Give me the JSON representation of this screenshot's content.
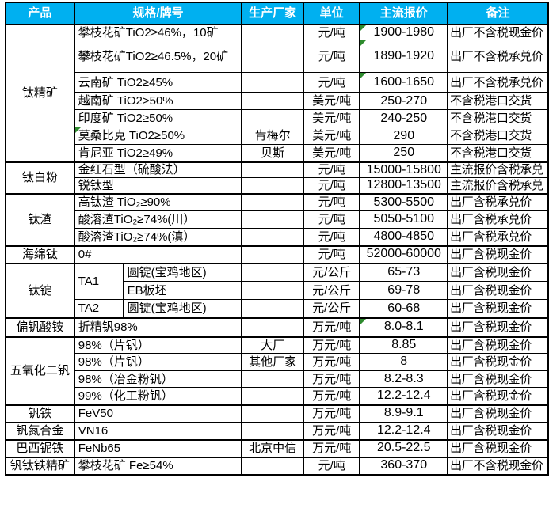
{
  "colors": {
    "header_bg": "#00B0F0",
    "header_text": "#FFFFFF",
    "border": "#000000",
    "error_flag_green": "#2E8B2E"
  },
  "table": {
    "columns": [
      "产品",
      "规格/牌号",
      "生产厂家",
      "单位",
      "主流报价",
      "备注"
    ],
    "rows": [
      {
        "cells": [
          {
            "type": "product",
            "text": "钛精矿",
            "rowspan": 7
          },
          {
            "type": "spec",
            "text": "攀枝花矿TiO2≥46%，10矿",
            "colspan": 2
          },
          {
            "type": "mfr",
            "text": ""
          },
          {
            "type": "unit",
            "text": "元/吨"
          },
          {
            "type": "price",
            "text": "1900-1980",
            "flag": true
          },
          {
            "type": "note",
            "text": "出厂不含税现金价"
          }
        ]
      },
      {
        "cells": [
          {
            "type": "spec",
            "text": "攀枝花矿TiO2≥46.5%，20矿",
            "colspan": 2
          },
          {
            "type": "mfr",
            "text": ""
          },
          {
            "type": "unit",
            "text": "元/吨"
          },
          {
            "type": "price",
            "text": "1890-1920",
            "flag": true
          },
          {
            "type": "note",
            "text": "出厂不含税承兑价"
          }
        ]
      },
      {
        "cells": [
          {
            "type": "spec",
            "text": "云南矿 TiO2≥45%",
            "colspan": 2
          },
          {
            "type": "mfr",
            "text": ""
          },
          {
            "type": "unit",
            "text": "元/吨"
          },
          {
            "type": "price",
            "text": "1600-1650",
            "flag": true
          },
          {
            "type": "note",
            "text": "出厂不含税承兑价"
          }
        ]
      },
      {
        "cells": [
          {
            "type": "spec",
            "text": "越南矿 TiO2>50%",
            "colspan": 2
          },
          {
            "type": "mfr",
            "text": ""
          },
          {
            "type": "unit",
            "text": "美元/吨"
          },
          {
            "type": "price",
            "text": "250-270"
          },
          {
            "type": "note",
            "text": "不含税港口交货"
          }
        ]
      },
      {
        "cells": [
          {
            "type": "spec",
            "text": "印度矿 TiO2≥50%",
            "colspan": 2
          },
          {
            "type": "mfr",
            "text": ""
          },
          {
            "type": "unit",
            "text": "美元/吨"
          },
          {
            "type": "price",
            "text": "240-250"
          },
          {
            "type": "note",
            "text": "不含税港口交货"
          }
        ]
      },
      {
        "cells": [
          {
            "type": "spec",
            "text": "莫桑比克 TiO2≥50%",
            "colspan": 2,
            "flag": true
          },
          {
            "type": "mfr",
            "text": "肯梅尔"
          },
          {
            "type": "unit",
            "text": "美元/吨"
          },
          {
            "type": "price",
            "text": "290"
          },
          {
            "type": "note",
            "text": "不含税港口交货"
          }
        ]
      },
      {
        "cells": [
          {
            "type": "spec",
            "text": "肯尼亚 TiO2≥49%",
            "colspan": 2
          },
          {
            "type": "mfr",
            "text": "贝斯"
          },
          {
            "type": "unit",
            "text": "美元/吨"
          },
          {
            "type": "price",
            "text": "250"
          },
          {
            "type": "note",
            "text": "不含税港口交货"
          }
        ]
      },
      {
        "cells": [
          {
            "type": "product",
            "text": "钛白粉",
            "rowspan": 2
          },
          {
            "type": "spec",
            "text": "金红石型（硫酸法）",
            "colspan": 2
          },
          {
            "type": "mfr",
            "text": ""
          },
          {
            "type": "unit",
            "text": "元/吨"
          },
          {
            "type": "price",
            "text": "15000-15800"
          },
          {
            "type": "note",
            "text": "主流报价含税承兑"
          }
        ]
      },
      {
        "cells": [
          {
            "type": "spec",
            "text": "锐钛型",
            "colspan": 2
          },
          {
            "type": "mfr",
            "text": ""
          },
          {
            "type": "unit",
            "text": "元/吨"
          },
          {
            "type": "price",
            "text": "12800-13500"
          },
          {
            "type": "note",
            "text": "主流报价含税承兑"
          }
        ]
      },
      {
        "cells": [
          {
            "type": "product",
            "text": "钛渣",
            "rowspan": 3
          },
          {
            "type": "spec",
            "text": "高钛渣 TiO₂≥90%",
            "colspan": 2
          },
          {
            "type": "mfr",
            "text": ""
          },
          {
            "type": "unit",
            "text": "元/吨"
          },
          {
            "type": "price",
            "text": "5300-5500"
          },
          {
            "type": "note",
            "text": "出厂含税承兑价"
          }
        ]
      },
      {
        "cells": [
          {
            "type": "spec",
            "text": "酸溶渣TiO₂≥74%(川）",
            "colspan": 2
          },
          {
            "type": "mfr",
            "text": ""
          },
          {
            "type": "unit",
            "text": "元/吨"
          },
          {
            "type": "price",
            "text": "5050-5100"
          },
          {
            "type": "note",
            "text": "出厂含税承兑价"
          }
        ]
      },
      {
        "cells": [
          {
            "type": "spec",
            "text": "酸溶渣TiO₂≥74%(滇）",
            "colspan": 2
          },
          {
            "type": "mfr",
            "text": ""
          },
          {
            "type": "unit",
            "text": "元/吨"
          },
          {
            "type": "price",
            "text": "4800-4850"
          },
          {
            "type": "note",
            "text": "出厂含税承兑价"
          }
        ]
      },
      {
        "cells": [
          {
            "type": "product",
            "text": "海绵钛"
          },
          {
            "type": "spec",
            "text": "0#",
            "colspan": 2
          },
          {
            "type": "mfr",
            "text": ""
          },
          {
            "type": "unit",
            "text": "元/吨"
          },
          {
            "type": "price",
            "text": "52000-60000"
          },
          {
            "type": "note",
            "text": "出厂含税现金价"
          }
        ]
      },
      {
        "cells": [
          {
            "type": "product",
            "text": "钛锭",
            "rowspan": 3
          },
          {
            "type": "speca",
            "text": "TA1",
            "rowspan": 2
          },
          {
            "type": "specb",
            "text": "圆锭(宝鸡地区)"
          },
          {
            "type": "mfr",
            "text": ""
          },
          {
            "type": "unit",
            "text": "元/公斤"
          },
          {
            "type": "price",
            "text": "65-73"
          },
          {
            "type": "note",
            "text": "出厂含税现金价"
          }
        ]
      },
      {
        "cells": [
          {
            "type": "specb",
            "text": "EB板坯"
          },
          {
            "type": "mfr",
            "text": ""
          },
          {
            "type": "unit",
            "text": "元/公斤"
          },
          {
            "type": "price",
            "text": "69-78"
          },
          {
            "type": "note",
            "text": "出厂含税现金价"
          }
        ]
      },
      {
        "cells": [
          {
            "type": "speca",
            "text": "TA2"
          },
          {
            "type": "specb",
            "text": "圆锭(宝鸡地区)"
          },
          {
            "type": "mfr",
            "text": ""
          },
          {
            "type": "unit",
            "text": "元/公斤"
          },
          {
            "type": "price",
            "text": "60-68"
          },
          {
            "type": "note",
            "text": "出厂含税现金价"
          }
        ]
      },
      {
        "cells": [
          {
            "type": "product",
            "text": "偏钒酸铵"
          },
          {
            "type": "spec",
            "text": "折精钒98%",
            "colspan": 2
          },
          {
            "type": "mfr",
            "text": ""
          },
          {
            "type": "unit",
            "text": "万元/吨"
          },
          {
            "type": "price",
            "text": "8.0-8.1",
            "flag": true
          },
          {
            "type": "note",
            "text": "出厂含税现金价"
          }
        ]
      },
      {
        "cells": [
          {
            "type": "product",
            "text": "五氧化二钒",
            "rowspan": 4
          },
          {
            "type": "spec",
            "text": "98%（片钒）",
            "colspan": 2
          },
          {
            "type": "mfr",
            "text": "大厂"
          },
          {
            "type": "unit",
            "text": "万元/吨"
          },
          {
            "type": "price",
            "text": "8.85"
          },
          {
            "type": "note",
            "text": "出厂含税现金价"
          }
        ]
      },
      {
        "cells": [
          {
            "type": "spec",
            "text": "98%（片钒）",
            "colspan": 2
          },
          {
            "type": "mfr",
            "text": "其他厂家"
          },
          {
            "type": "unit",
            "text": "万元/吨"
          },
          {
            "type": "price",
            "text": "8"
          },
          {
            "type": "note",
            "text": "出厂含税现金价"
          }
        ]
      },
      {
        "cells": [
          {
            "type": "spec",
            "text": "98%（冶金粉钒）",
            "colspan": 2
          },
          {
            "type": "mfr",
            "text": ""
          },
          {
            "type": "unit",
            "text": "万元/吨"
          },
          {
            "type": "price",
            "text": "8.2-8.3"
          },
          {
            "type": "note",
            "text": "出厂含税现金价"
          }
        ]
      },
      {
        "cells": [
          {
            "type": "spec",
            "text": "99%（化工粉钒）",
            "colspan": 2
          },
          {
            "type": "mfr",
            "text": ""
          },
          {
            "type": "unit",
            "text": "万元/吨"
          },
          {
            "type": "price",
            "text": "12.2-12.4"
          },
          {
            "type": "note",
            "text": "出厂含税现金价"
          }
        ]
      },
      {
        "cells": [
          {
            "type": "product",
            "text": "钒铁"
          },
          {
            "type": "spec",
            "text": "FeV50",
            "colspan": 2
          },
          {
            "type": "mfr",
            "text": ""
          },
          {
            "type": "unit",
            "text": "万元/吨"
          },
          {
            "type": "price",
            "text": "8.9-9.1"
          },
          {
            "type": "note",
            "text": "出厂含税现金价"
          }
        ]
      },
      {
        "cells": [
          {
            "type": "product",
            "text": "钒氮合金"
          },
          {
            "type": "spec",
            "text": "VN16",
            "colspan": 2
          },
          {
            "type": "mfr",
            "text": ""
          },
          {
            "type": "unit",
            "text": "万元/吨"
          },
          {
            "type": "price",
            "text": "12.2-12.4"
          },
          {
            "type": "note",
            "text": "出厂含税现金价"
          }
        ]
      },
      {
        "cells": [
          {
            "type": "product",
            "text": "巴西铌铁"
          },
          {
            "type": "spec",
            "text": "FeNb65",
            "colspan": 2
          },
          {
            "type": "mfr",
            "text": "北京中信"
          },
          {
            "type": "unit",
            "text": "万元/吨"
          },
          {
            "type": "price",
            "text": "20.5-22.5"
          },
          {
            "type": "note",
            "text": "出厂含税现金价"
          }
        ]
      },
      {
        "cells": [
          {
            "type": "product",
            "text": "钒钛铁精矿"
          },
          {
            "type": "spec",
            "text": "攀枝花矿 Fe≥54%",
            "colspan": 2
          },
          {
            "type": "mfr",
            "text": ""
          },
          {
            "type": "unit",
            "text": "元/吨"
          },
          {
            "type": "price",
            "text": "360-370"
          },
          {
            "type": "note",
            "text": "出厂不含税现金价"
          }
        ]
      }
    ]
  }
}
